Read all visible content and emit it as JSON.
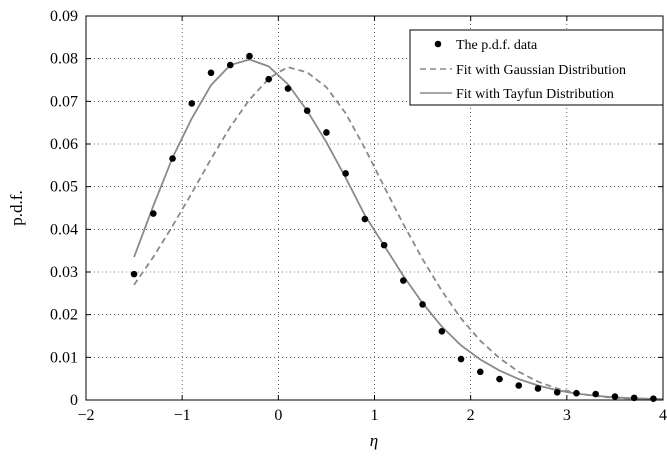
{
  "chart_data": {
    "type": "line",
    "title": "",
    "xlabel": "η",
    "ylabel": "p.d.f.",
    "xlim": [
      -2,
      4
    ],
    "ylim": [
      0,
      0.09
    ],
    "grid": true,
    "legend_placement": "top-right",
    "x_ticks": [
      "−2",
      "−1",
      "0",
      "1",
      "2",
      "3",
      "4"
    ],
    "y_ticks": [
      "0",
      "0.01",
      "0.02",
      "0.03",
      "0.04",
      "0.05",
      "0.06",
      "0.07",
      "0.08",
      "0.09"
    ],
    "series": [
      {
        "name": "The p.d.f. data",
        "style": "markers",
        "color": "#000000",
        "x": [
          -1.5,
          -1.3,
          -1.1,
          -0.9,
          -0.7,
          -0.5,
          -0.3,
          -0.1,
          0.1,
          0.3,
          0.5,
          0.7,
          0.9,
          1.1,
          1.3,
          1.5,
          1.7,
          1.9,
          2.1,
          2.3,
          2.5,
          2.7,
          2.9,
          3.1,
          3.3,
          3.5,
          3.7,
          3.9
        ],
        "y": [
          0.0295,
          0.0437,
          0.0566,
          0.0695,
          0.0767,
          0.0785,
          0.0806,
          0.0752,
          0.073,
          0.0678,
          0.0627,
          0.0531,
          0.0424,
          0.0363,
          0.028,
          0.0224,
          0.0161,
          0.0096,
          0.0066,
          0.0049,
          0.0034,
          0.0027,
          0.0018,
          0.0016,
          0.0014,
          0.0008,
          0.0005,
          0.0003
        ]
      },
      {
        "name": "Fit with Gaussian Distribution",
        "style": "dashed",
        "color": "#8a8a8a",
        "x": [
          -1.5,
          -1.3,
          -1.1,
          -0.9,
          -0.7,
          -0.5,
          -0.3,
          -0.1,
          0.0,
          0.1,
          0.3,
          0.5,
          0.7,
          0.9,
          1.1,
          1.3,
          1.5,
          1.7,
          1.9,
          2.1,
          2.3,
          2.5,
          2.7,
          2.9,
          3.1,
          3.3,
          3.5,
          3.7,
          4.0
        ],
        "y": [
          0.027,
          0.0335,
          0.0408,
          0.0485,
          0.0565,
          0.064,
          0.0704,
          0.0753,
          0.0768,
          0.078,
          0.0768,
          0.0733,
          0.0672,
          0.059,
          0.05,
          0.0412,
          0.033,
          0.0256,
          0.0191,
          0.0139,
          0.0098,
          0.0066,
          0.0043,
          0.0027,
          0.0016,
          0.0009,
          0.0005,
          0.0003,
          0.0001
        ]
      },
      {
        "name": "Fit with Tayfun Distribution",
        "style": "solid",
        "color": "#8a8a8a",
        "x": [
          -1.5,
          -1.3,
          -1.1,
          -0.9,
          -0.7,
          -0.5,
          -0.3,
          -0.1,
          0.1,
          0.3,
          0.5,
          0.7,
          0.9,
          1.1,
          1.3,
          1.5,
          1.7,
          1.9,
          2.1,
          2.3,
          2.5,
          2.7,
          2.9,
          3.1,
          3.3,
          3.5,
          3.7,
          4.0
        ],
        "y": [
          0.0335,
          0.0455,
          0.0568,
          0.066,
          0.0738,
          0.0785,
          0.0798,
          0.0782,
          0.074,
          0.0678,
          0.0604,
          0.0521,
          0.0433,
          0.0362,
          0.0291,
          0.0227,
          0.0172,
          0.0128,
          0.0095,
          0.0069,
          0.0049,
          0.0034,
          0.0023,
          0.0015,
          0.001,
          0.0006,
          0.0004,
          0.0002
        ]
      }
    ]
  }
}
